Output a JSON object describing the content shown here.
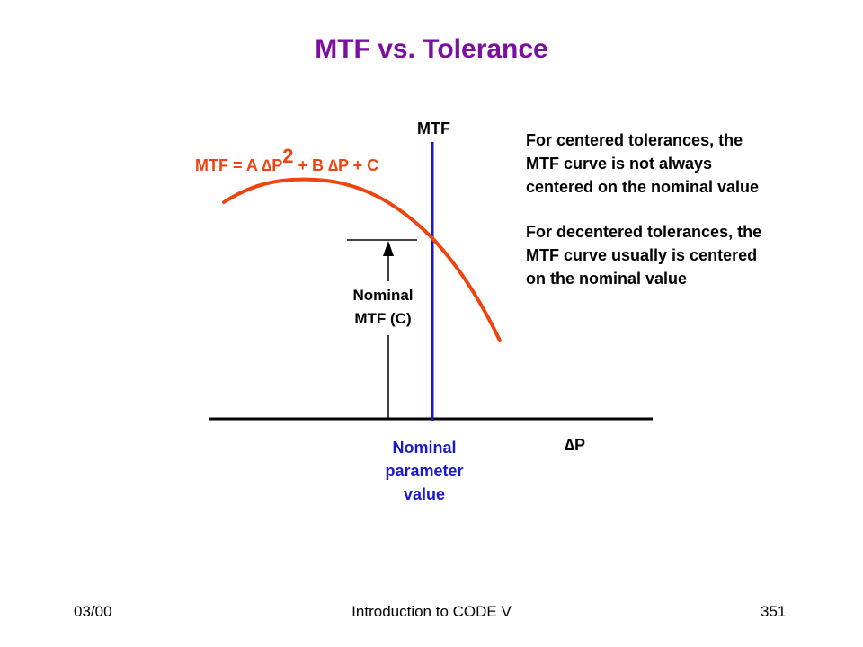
{
  "slide": {
    "title": "MTF vs. Tolerance",
    "notes": [
      [
        "For centered tolerances, the",
        "MTF curve is not always",
        "centered on the nominal value"
      ],
      [
        "For decentered tolerances, the",
        "MTF curve usually is centered",
        "on the nominal value"
      ]
    ],
    "footer": {
      "date": "03/00",
      "course": "Introduction to CODE V",
      "page": "351"
    }
  },
  "diagram": {
    "equation": {
      "part1": "MTF = A ",
      "delta1": "∆",
      "part2": "P",
      "superscript": "2",
      "part3": " + B ",
      "delta2": "∆",
      "part4": "P + C"
    },
    "y_axis_label": "MTF",
    "x_axis_label": {
      "delta": "∆",
      "text": "P"
    },
    "nominal_mtf_label": [
      "Nominal",
      "MTF (C)"
    ],
    "nominal_param_label": [
      "Nominal",
      "parameter",
      "value"
    ],
    "colors": {
      "curve": "#ee4411",
      "axis": "#1a1acc",
      "title": "#7a0fa0",
      "param_label": "#1a1acc"
    }
  }
}
